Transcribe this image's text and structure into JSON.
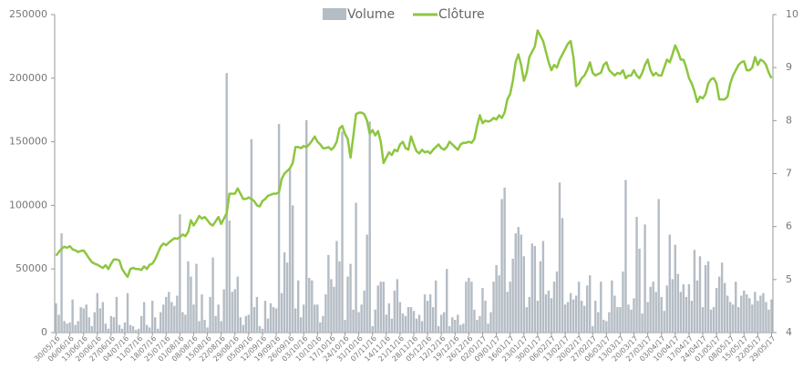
{
  "chart_data": {
    "type": "bar-line",
    "categories": [
      "30/05/16",
      null,
      null,
      null,
      null,
      "06/06/16",
      null,
      null,
      null,
      null,
      "13/06/16",
      null,
      null,
      null,
      null,
      "20/06/16",
      null,
      null,
      null,
      null,
      "27/06/16",
      null,
      null,
      null,
      null,
      "04/07/16",
      null,
      null,
      null,
      null,
      "11/07/16",
      null,
      null,
      null,
      null,
      "18/07/16",
      null,
      null,
      null,
      null,
      "25/07/16",
      null,
      null,
      null,
      null,
      "01/08/16",
      null,
      null,
      null,
      null,
      "08/08/16",
      null,
      null,
      null,
      null,
      "15/08/16",
      null,
      null,
      null,
      null,
      "22/08/16",
      null,
      null,
      null,
      null,
      "29/08/16",
      null,
      null,
      null,
      null,
      "05/09/16",
      null,
      null,
      null,
      null,
      "12/09/16",
      null,
      null,
      null,
      null,
      "19/09/16",
      null,
      null,
      null,
      null,
      "26/09/16",
      null,
      null,
      null,
      null,
      "03/10/16",
      null,
      null,
      null,
      null,
      "10/10/16",
      null,
      null,
      null,
      null,
      "17/10/16",
      null,
      null,
      null,
      null,
      "24/10/16",
      null,
      null,
      null,
      null,
      "31/10/16",
      null,
      null,
      null,
      null,
      "07/11/16",
      null,
      null,
      null,
      null,
      "14/11/16",
      null,
      null,
      null,
      null,
      "21/11/16",
      null,
      null,
      null,
      null,
      "28/11/16",
      null,
      null,
      null,
      null,
      "05/12/16",
      null,
      null,
      null,
      null,
      "12/12/16",
      null,
      null,
      null,
      null,
      "19/12/16",
      null,
      null,
      null,
      null,
      "26/12/16",
      null,
      null,
      null,
      null,
      "02/01/17",
      null,
      null,
      null,
      null,
      "09/01/17",
      null,
      null,
      null,
      null,
      "16/01/17",
      null,
      null,
      null,
      null,
      "23/01/17",
      null,
      null,
      null,
      null,
      "30/01/17",
      null,
      null,
      null,
      null,
      "06/02/17",
      null,
      null,
      null,
      null,
      "13/02/17",
      null,
      null,
      null,
      null,
      "20/02/17",
      null,
      null,
      null,
      null,
      "27/02/17",
      null,
      null,
      null,
      null,
      "06/03/17",
      null,
      null,
      null,
      null,
      "13/03/17",
      null,
      null,
      null,
      null,
      "20/03/17",
      null,
      null,
      null,
      null,
      "27/03/17",
      null,
      null,
      null,
      null,
      "03/04/17",
      null,
      null,
      null,
      null,
      "10/04/17",
      null,
      null,
      null,
      null,
      "17/04/17",
      null,
      null,
      null,
      null,
      "24/04/17",
      null,
      null,
      null,
      null,
      "01/05/17",
      null,
      null,
      null,
      null,
      "08/05/17",
      null,
      null,
      null,
      null,
      "15/05/17",
      null,
      null,
      null,
      null,
      "22/05/17",
      null,
      null,
      null,
      null,
      "29/05/17"
    ],
    "series": [
      {
        "name": "Volume",
        "color": "#b4bcc4",
        "values": [
          23000,
          14000,
          78000,
          9000,
          7000,
          8000,
          26000,
          6000,
          9000,
          20000,
          19000,
          22000,
          12000,
          5000,
          16000,
          31000,
          19000,
          24000,
          7000,
          3000,
          13000,
          12000,
          28000,
          6000,
          3000,
          8000,
          31000,
          6000,
          5000,
          2000,
          3000,
          13000,
          24000,
          6000,
          4000,
          25000,
          12000,
          3000,
          16000,
          22000,
          28000,
          32000,
          24000,
          21000,
          29000,
          93000,
          16000,
          14000,
          56000,
          44000,
          22000,
          54000,
          9000,
          30000,
          10000,
          4000,
          28000,
          59000,
          13000,
          22000,
          9000,
          34000,
          204000,
          88000,
          32000,
          34000,
          44000,
          12000,
          6000,
          13000,
          14000,
          152000,
          20000,
          28000,
          5000,
          3000,
          25000,
          11000,
          23000,
          20000,
          19000,
          164000,
          31000,
          63000,
          55000,
          129000,
          100000,
          19000,
          41000,
          12000,
          22000,
          167000,
          43000,
          41000,
          22000,
          22000,
          8000,
          13000,
          30000,
          61000,
          42000,
          36000,
          72000,
          56000,
          158000,
          10000,
          44000,
          54000,
          18000,
          102000,
          16000,
          22000,
          33000,
          77000,
          166000,
          5000,
          18000,
          37000,
          40000,
          40000,
          14000,
          23000,
          11000,
          33000,
          42000,
          24000,
          15000,
          13000,
          20000,
          20000,
          17000,
          11000,
          14000,
          9000,
          30000,
          25000,
          30000,
          20000,
          41000,
          5000,
          14000,
          16000,
          50000,
          5000,
          12000,
          10000,
          14000,
          6000,
          7000,
          40000,
          43000,
          40000,
          18000,
          10000,
          13000,
          35000,
          25000,
          7000,
          16000,
          40000,
          53000,
          45000,
          105000,
          114000,
          32000,
          40000,
          58000,
          78000,
          83000,
          77000,
          60000,
          20000,
          28000,
          70000,
          68000,
          25000,
          56000,
          72000,
          30000,
          33000,
          27000,
          40000,
          48000,
          118000,
          90000,
          22000,
          24000,
          31000,
          26000,
          29000,
          40000,
          25000,
          21000,
          37000,
          45000,
          5000,
          25000,
          16000,
          40000,
          10000,
          9000,
          16000,
          41000,
          29000,
          20000,
          20000,
          48000,
          120000,
          22000,
          18000,
          27000,
          91000,
          66000,
          15000,
          85000,
          24000,
          36000,
          40000,
          32000,
          105000,
          28000,
          17000,
          37000,
          77000,
          42000,
          69000,
          46000,
          32000,
          38000,
          28000,
          38000,
          25000,
          65000,
          41000,
          60000,
          20000,
          53000,
          56000,
          18000,
          20000,
          35000,
          44000,
          55000,
          39000,
          29000,
          24000,
          22000,
          40000,
          20000,
          29000,
          33000,
          30000,
          27000,
          22000,
          32000,
          25000,
          29000,
          31000,
          24000,
          18000,
          26000
        ]
      },
      {
        "name": "Clôture",
        "color": "#8dc63f",
        "axis": "y2",
        "values": [
          5.45,
          5.52,
          5.58,
          5.62,
          5.6,
          5.63,
          5.57,
          5.55,
          5.52,
          5.54,
          5.55,
          5.48,
          5.4,
          5.33,
          5.3,
          5.28,
          5.25,
          5.22,
          5.27,
          5.2,
          5.3,
          5.38,
          5.38,
          5.36,
          5.2,
          5.12,
          5.05,
          5.2,
          5.22,
          5.2,
          5.2,
          5.18,
          5.25,
          5.2,
          5.28,
          5.3,
          5.38,
          5.5,
          5.62,
          5.68,
          5.65,
          5.7,
          5.74,
          5.78,
          5.77,
          5.8,
          5.85,
          5.82,
          5.9,
          6.12,
          6.02,
          6.1,
          6.2,
          6.15,
          6.18,
          6.12,
          6.05,
          6.02,
          6.1,
          6.18,
          6.05,
          6.15,
          6.25,
          6.62,
          6.62,
          6.62,
          6.72,
          6.62,
          6.52,
          6.52,
          6.55,
          6.52,
          6.48,
          6.4,
          6.38,
          6.48,
          6.52,
          6.58,
          6.6,
          6.62,
          6.62,
          6.65,
          6.9,
          7.0,
          7.05,
          7.1,
          7.2,
          7.5,
          7.5,
          7.48,
          7.52,
          7.5,
          7.55,
          7.62,
          7.7,
          7.6,
          7.55,
          7.48,
          7.48,
          7.5,
          7.45,
          7.5,
          7.6,
          7.85,
          7.9,
          7.75,
          7.65,
          7.3,
          7.7,
          8.12,
          8.15,
          8.15,
          8.12,
          8.0,
          7.75,
          7.82,
          7.72,
          7.8,
          7.6,
          7.2,
          7.3,
          7.4,
          7.35,
          7.45,
          7.42,
          7.55,
          7.6,
          7.48,
          7.45,
          7.7,
          7.55,
          7.42,
          7.38,
          7.45,
          7.4,
          7.42,
          7.38,
          7.45,
          7.5,
          7.55,
          7.48,
          7.45,
          7.5,
          7.6,
          7.55,
          7.5,
          7.45,
          7.55,
          7.58,
          7.58,
          7.6,
          7.58,
          7.65,
          7.9,
          8.1,
          7.95,
          8.0,
          7.98,
          8.0,
          8.05,
          8.02,
          8.1,
          8.05,
          8.15,
          8.4,
          8.5,
          8.75,
          9.1,
          9.25,
          9.05,
          8.75,
          8.9,
          9.2,
          9.3,
          9.4,
          9.7,
          9.6,
          9.5,
          9.3,
          9.1,
          8.95,
          9.05,
          9.0,
          9.15,
          9.25,
          9.35,
          9.45,
          9.5,
          9.2,
          8.65,
          8.7,
          8.8,
          8.85,
          8.95,
          9.1,
          8.9,
          8.85,
          8.88,
          8.9,
          9.05,
          9.1,
          8.95,
          8.9,
          8.85,
          8.9,
          8.88,
          8.95,
          8.8,
          8.85,
          8.85,
          8.95,
          8.85,
          8.8,
          8.9,
          9.05,
          9.15,
          8.95,
          8.85,
          8.9,
          8.85,
          8.85,
          9.0,
          9.15,
          9.1,
          9.25,
          9.42,
          9.3,
          9.15,
          9.15,
          9.0,
          8.8,
          8.7,
          8.55,
          8.35,
          8.45,
          8.42,
          8.5,
          8.7,
          8.78,
          8.8,
          8.7,
          8.4,
          8.4,
          8.4,
          8.45,
          8.7,
          8.85,
          8.95,
          9.05,
          9.1,
          9.12,
          8.95,
          8.95,
          9.0,
          9.2,
          9.05,
          9.15,
          9.12,
          9.05,
          8.9,
          8.8
        ]
      }
    ],
    "ylim": [
      0,
      250000
    ],
    "yticks": [
      0,
      50000,
      100000,
      150000,
      200000,
      250000
    ],
    "y2lim": [
      4,
      10
    ],
    "y2ticks": [
      4,
      5,
      6,
      7,
      8,
      9,
      10
    ],
    "legend": "top"
  }
}
